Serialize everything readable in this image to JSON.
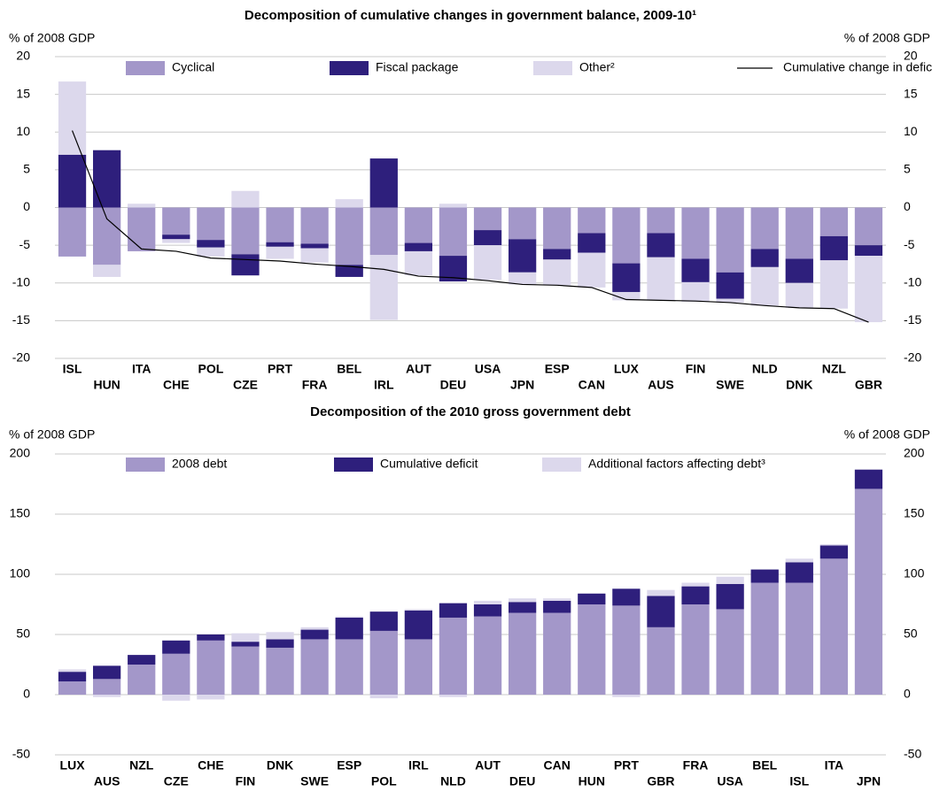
{
  "chart_data": [
    {
      "type": "bar",
      "stacked": true,
      "title": "Decomposition of cumulative changes in government balance, 2009-10¹",
      "ylabel": "% of 2008 GDP",
      "y2label": "% of 2008 GDP",
      "categories": [
        "ISL",
        "HUN",
        "ITA",
        "CHE",
        "POL",
        "CZE",
        "PRT",
        "FRA",
        "BEL",
        "IRL",
        "AUT",
        "DEU",
        "USA",
        "JPN",
        "ESP",
        "CAN",
        "LUX",
        "AUS",
        "FIN",
        "SWE",
        "NLD",
        "DNK",
        "NZL",
        "GBR"
      ],
      "series": [
        {
          "name": "Cyclical",
          "color": "#a397c9",
          "values": [
            -6.5,
            -7.6,
            -5.8,
            -3.6,
            -4.3,
            -6.2,
            -4.6,
            -4.8,
            -7.6,
            -6.3,
            -4.7,
            -6.4,
            -3.0,
            -4.2,
            -5.5,
            -3.4,
            -7.4,
            -3.4,
            -6.8,
            -8.6,
            -5.5,
            -6.8,
            -3.8,
            -5.0
          ]
        },
        {
          "name": "Fiscal package",
          "color": "#2e1f7c",
          "values": [
            7.0,
            7.6,
            0,
            -0.6,
            -1.0,
            -2.8,
            -0.6,
            -0.6,
            -1.6,
            6.5,
            -1.1,
            -3.4,
            -2.0,
            -4.4,
            -1.4,
            -2.6,
            -3.8,
            -3.2,
            -3.1,
            -3.5,
            -2.4,
            -3.2,
            -3.2,
            -1.4
          ]
        },
        {
          "name": "Other²",
          "color": "#dcd8ec",
          "values": [
            9.7,
            -1.6,
            0.5,
            -0.5,
            -1.2,
            2.2,
            -1.6,
            -1.9,
            1.1,
            -8.6,
            -3.2,
            0.5,
            -4.6,
            -1.6,
            -3.4,
            -4.6,
            -1.1,
            -5.7,
            -2.6,
            -0.5,
            -5.1,
            -3.3,
            -6.4,
            -8.8
          ]
        },
        {
          "name": "Cumulative change in deficit",
          "color": "#000000",
          "kind": "line",
          "values": [
            10.2,
            -1.5,
            -5.5,
            -5.8,
            -6.7,
            -6.9,
            -7.1,
            -7.5,
            -7.8,
            -8.2,
            -9.1,
            -9.3,
            -9.7,
            -10.2,
            -10.3,
            -10.6,
            -12.2,
            -12.3,
            -12.4,
            -12.6,
            -13.0,
            -13.3,
            -13.4,
            -15.2
          ]
        }
      ],
      "ylim": [
        -20,
        20
      ],
      "yticks": [
        -20,
        -15,
        -10,
        -5,
        0,
        5,
        10,
        15,
        20
      ],
      "grid": true
    },
    {
      "type": "bar",
      "stacked": true,
      "title": "Decomposition of the 2010 gross government debt",
      "ylabel": "% of 2008 GDP",
      "y2label": "% of 2008 GDP",
      "categories": [
        "LUX",
        "AUS",
        "NZL",
        "CZE",
        "CHE",
        "FIN",
        "DNK",
        "SWE",
        "ESP",
        "POL",
        "IRL",
        "NLD",
        "AUT",
        "DEU",
        "CAN",
        "HUN",
        "PRT",
        "GBR",
        "FRA",
        "USA",
        "BEL",
        "ISL",
        "ITA",
        "JPN"
      ],
      "series": [
        {
          "name": "2008 debt",
          "color": "#a397c9",
          "values": [
            11,
            13,
            25,
            34,
            45,
            40,
            39,
            46,
            46,
            53,
            46,
            64,
            65,
            68,
            68,
            75,
            74,
            56,
            75,
            71,
            93,
            93,
            113,
            171
          ]
        },
        {
          "name": "Cumulative deficit",
          "color": "#2e1f7c",
          "values": [
            8,
            11,
            8,
            11,
            5,
            4,
            7,
            8,
            18,
            16,
            24,
            12,
            10,
            9,
            10,
            9,
            14,
            26,
            15,
            21,
            11,
            17,
            11,
            16
          ]
        },
        {
          "name": "Additional factors affecting debt³",
          "color": "#dcd8ec",
          "values": [
            2,
            -2,
            0,
            -5,
            -4,
            7,
            6,
            2,
            1,
            -3,
            1,
            -2,
            3,
            3,
            2,
            0,
            -2,
            5,
            3,
            6,
            0,
            3,
            1,
            0
          ]
        }
      ],
      "ylim": [
        -50,
        200
      ],
      "yticks": [
        -50,
        0,
        50,
        100,
        150,
        200
      ],
      "grid": true
    }
  ]
}
